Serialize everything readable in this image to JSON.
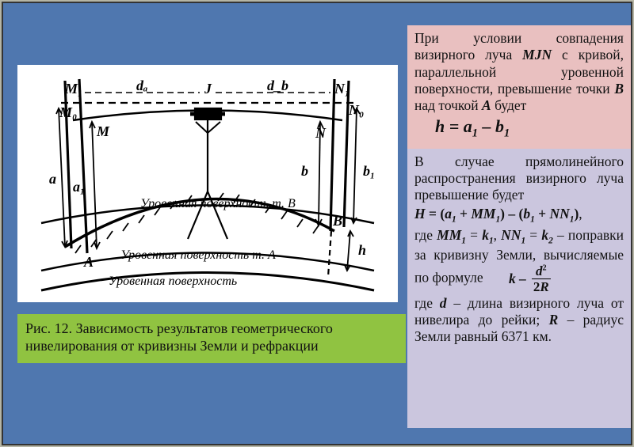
{
  "colors": {
    "slide_bg": "#4f77af",
    "page_bg": "#b5b5a5",
    "figure_bg": "#ffffff",
    "caption_bg": "#90c341",
    "pink_bg": "#e9c0c0",
    "lilac_bg": "#cbc6de",
    "text": "#111111",
    "svg_stroke": "#000000"
  },
  "caption": "Рис. 12. Зависимость результатов геометрического нивелирования от кривизны Земли и рефракции",
  "pink": {
    "text_html": "При условии совпадения визирного луча <b><i>MJN</i></b> с кривой, параллельной уровенной поверхности, превышение точки <b><i>B</i></b> над точкой <b><i>A</i></b> будет",
    "formula": "h = a<sub>1</sub> – b<sub>1</sub>"
  },
  "lilac": {
    "p1_html": "В случае прямолинейного распространения визирного луча превышение будет",
    "eq1_html": "<b><i>H</i> = (<i>a<sub>1</sub></i> + <i>MM<sub>1</sub></i>) – (<i>b<sub>1</sub></i> + <i>NN<sub>1</sub></i>)</b>,",
    "p2_html": "где <b><i>MM<sub>1</sub></i></b> = <b><i>k<sub>1</sub></i></b>, <b><i>NN<sub>1</sub></i></b> = <b><i>k<sub>2</sub></i></b> – поправки за кривизну Земли, вычисляемые по формуле",
    "frac_lhs": "k –",
    "frac_num_d": "d",
    "frac_num_exp": "2",
    "frac_den_2": "2",
    "frac_den_r": "R",
    "p3_html": "где <b><i>d</i></b> – длина визирного луча от нивелира до рейки; <b><i>R</i></b> – радиус Земли равный 6371 км."
  },
  "diagram": {
    "labels": {
      "M1": "M₁",
      "M0": "M₀",
      "M": "M",
      "J": "J",
      "N1": "N₁",
      "N0": "N₀",
      "N": "N",
      "A": "A",
      "B": "B",
      "da": "dₐ",
      "db": "d_b",
      "a": "a",
      "a1": "a₁",
      "b": "b",
      "b1": "b₁",
      "h": "h",
      "surf_B": "Уровенная поверхность т. B",
      "surf_A": "Уровенная поверхность т. A",
      "surf_main": "Уровенная поверхность"
    }
  }
}
